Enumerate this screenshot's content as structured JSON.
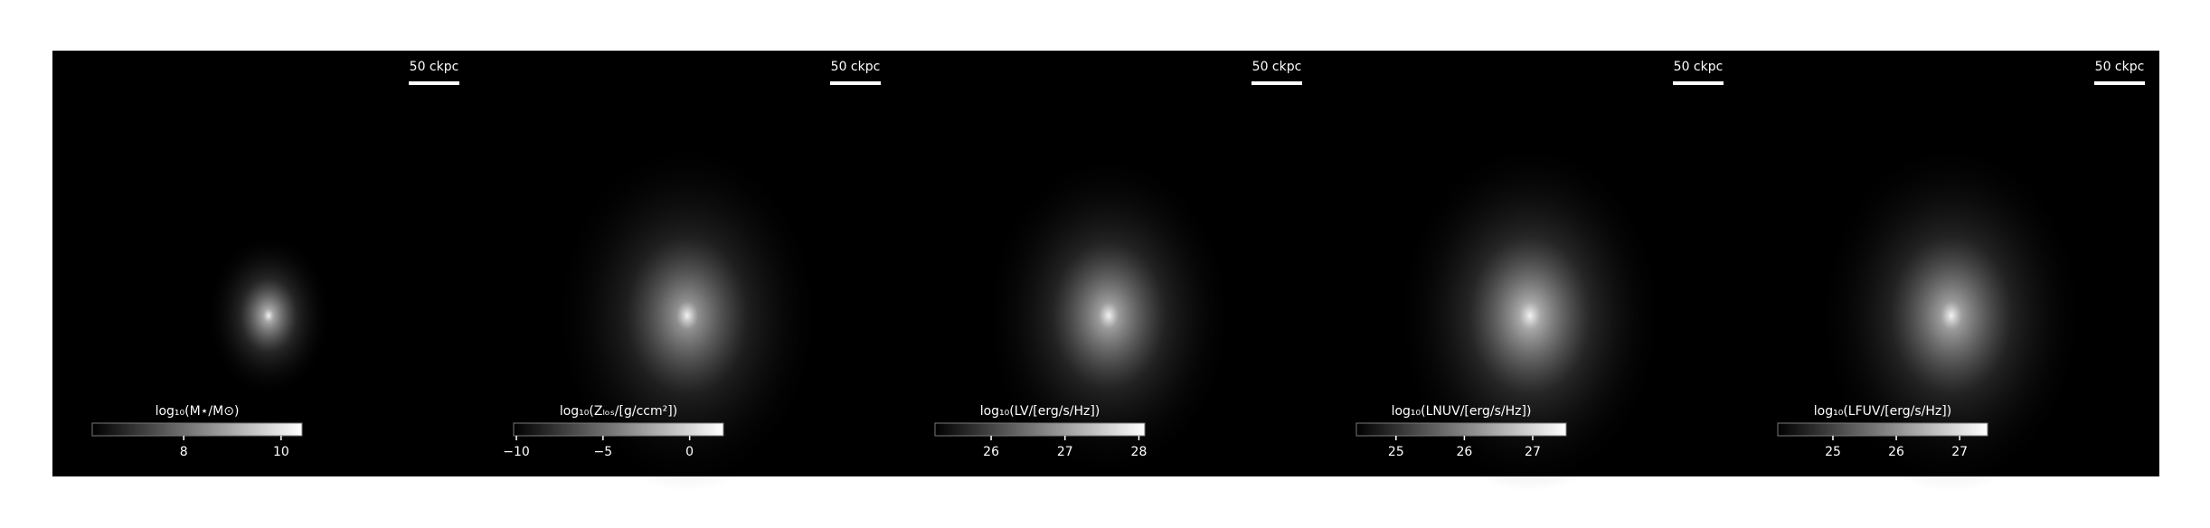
{
  "chart_data": [
    {
      "type": "image",
      "cmap": [
        "#000000",
        "#ffffff"
      ],
      "scalebar": "50 ckpc",
      "colorbar_label": "log₁₀(M⋆/M⊙)",
      "clim": [
        6.12,
        10.43
      ],
      "cticks": [
        8,
        10
      ]
    },
    {
      "type": "image",
      "cmap": [
        "#000000",
        "#ffffff"
      ],
      "scalebar": "50 ckpc",
      "colorbar_label": "log₁₀(Zₗₒₛ/[g/ccm²])",
      "clim": [
        -10.16,
        1.95
      ],
      "cticks": [
        {
          "value": -10,
          "label": "−10"
        },
        {
          "value": -5,
          "label": "−5"
        },
        0
      ]
    },
    {
      "type": "image",
      "cmap": [
        "#000000",
        "#ffffff"
      ],
      "scalebar": "50 ckpc",
      "colorbar_label": "log₁₀(LV/[erg/s/Hz])",
      "clim": [
        25.24,
        28.08
      ],
      "cticks": [
        26,
        27,
        28
      ]
    },
    {
      "type": "image",
      "cmap": [
        "#000000",
        "#ffffff"
      ],
      "scalebar": "50 ckpc",
      "colorbar_label": "log₁₀(LNUV/[erg/s/Hz])",
      "clim": [
        24.42,
        27.49
      ],
      "cticks": [
        25,
        26,
        27
      ]
    },
    {
      "type": "image",
      "cmap": [
        "#000000",
        "#ffffff"
      ],
      "scalebar": "50 ckpc",
      "colorbar_label": "log₁₀(LFUV/[erg/s/Hz])",
      "clim": [
        24.13,
        27.44
      ],
      "cticks": [
        25,
        26,
        27
      ]
    }
  ]
}
